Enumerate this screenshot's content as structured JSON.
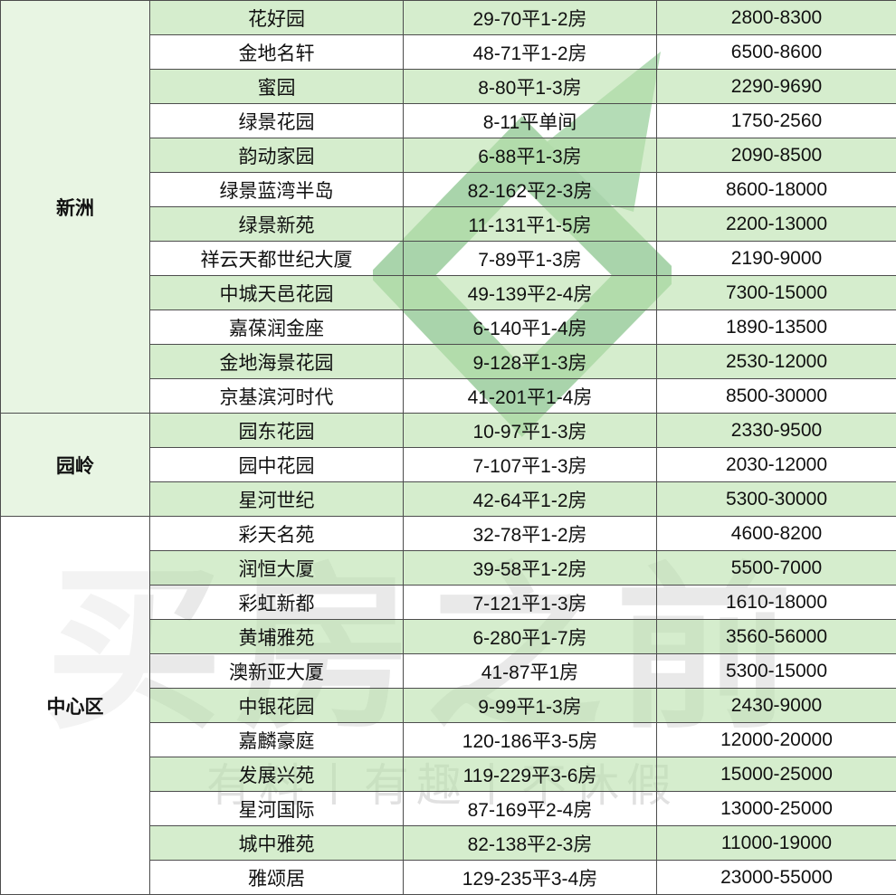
{
  "watermark": {
    "brand_text": "买房之前",
    "tagline": "有料丨有趣丨不休假",
    "arrow_color_dark": "#4aa44f",
    "arrow_color_light": "#62b566",
    "text_color": "#aeaeae"
  },
  "colors": {
    "row_green": "#d6ecd0",
    "row_white": "#ffffff",
    "border": "#4d4d4d",
    "text": "#111111"
  },
  "chart_data": {
    "type": "table",
    "sections": [
      {
        "district": "新洲",
        "rows": [
          {
            "name": "花好园",
            "size": "29-70平1-2房",
            "price": "2800-8300"
          },
          {
            "name": "金地名轩",
            "size": "48-71平1-2房",
            "price": "6500-8600"
          },
          {
            "name": "蜜园",
            "size": "8-80平1-3房",
            "price": "2290-9690"
          },
          {
            "name": "绿景花园",
            "size": "8-11平单间",
            "price": "1750-2560"
          },
          {
            "name": "韵动家园",
            "size": "6-88平1-3房",
            "price": "2090-8500"
          },
          {
            "name": "绿景蓝湾半岛",
            "size": "82-162平2-3房",
            "price": "8600-18000"
          },
          {
            "name": "绿景新苑",
            "size": "11-131平1-5房",
            "price": "2200-13000"
          },
          {
            "name": "祥云天都世纪大厦",
            "size": "7-89平1-3房",
            "price": "2190-9000"
          },
          {
            "name": "中城天邑花园",
            "size": "49-139平2-4房",
            "price": "7300-15000"
          },
          {
            "name": "嘉葆润金座",
            "size": "6-140平1-4房",
            "price": "1890-13500"
          },
          {
            "name": "金地海景花园",
            "size": "9-128平1-3房",
            "price": "2530-12000"
          },
          {
            "name": "京基滨河时代",
            "size": "41-201平1-4房",
            "price": "8500-30000"
          }
        ]
      },
      {
        "district": "园岭",
        "rows": [
          {
            "name": "园东花园",
            "size": "10-97平1-3房",
            "price": "2330-9500"
          },
          {
            "name": "园中花园",
            "size": "7-107平1-3房",
            "price": "2030-12000"
          },
          {
            "name": "星河世纪",
            "size": "42-64平1-2房",
            "price": "5300-30000"
          }
        ]
      },
      {
        "district": "中心区",
        "rows": [
          {
            "name": "彩天名苑",
            "size": "32-78平1-2房",
            "price": "4600-8200"
          },
          {
            "name": "润恒大厦",
            "size": "39-58平1-2房",
            "price": "5500-7000"
          },
          {
            "name": "彩虹新都",
            "size": "7-121平1-3房",
            "price": "1610-18000"
          },
          {
            "name": "黄埔雅苑",
            "size": "6-280平1-7房",
            "price": "3560-56000"
          },
          {
            "name": "澳新亚大厦",
            "size": "41-87平1房",
            "price": "5300-15000"
          },
          {
            "name": "中银花园",
            "size": "9-99平1-3房",
            "price": "2430-9000"
          },
          {
            "name": "嘉麟豪庭",
            "size": "120-186平3-5房",
            "price": "12000-20000"
          },
          {
            "name": "发展兴苑",
            "size": "119-229平3-6房",
            "price": "15000-25000"
          },
          {
            "name": "星河国际",
            "size": "87-169平2-4房",
            "price": "13000-25000"
          },
          {
            "name": "城中雅苑",
            "size": "82-138平2-3房",
            "price": "11000-19000"
          },
          {
            "name": "雅颂居",
            "size": "129-235平3-4房",
            "price": "23000-55000"
          }
        ]
      }
    ]
  }
}
